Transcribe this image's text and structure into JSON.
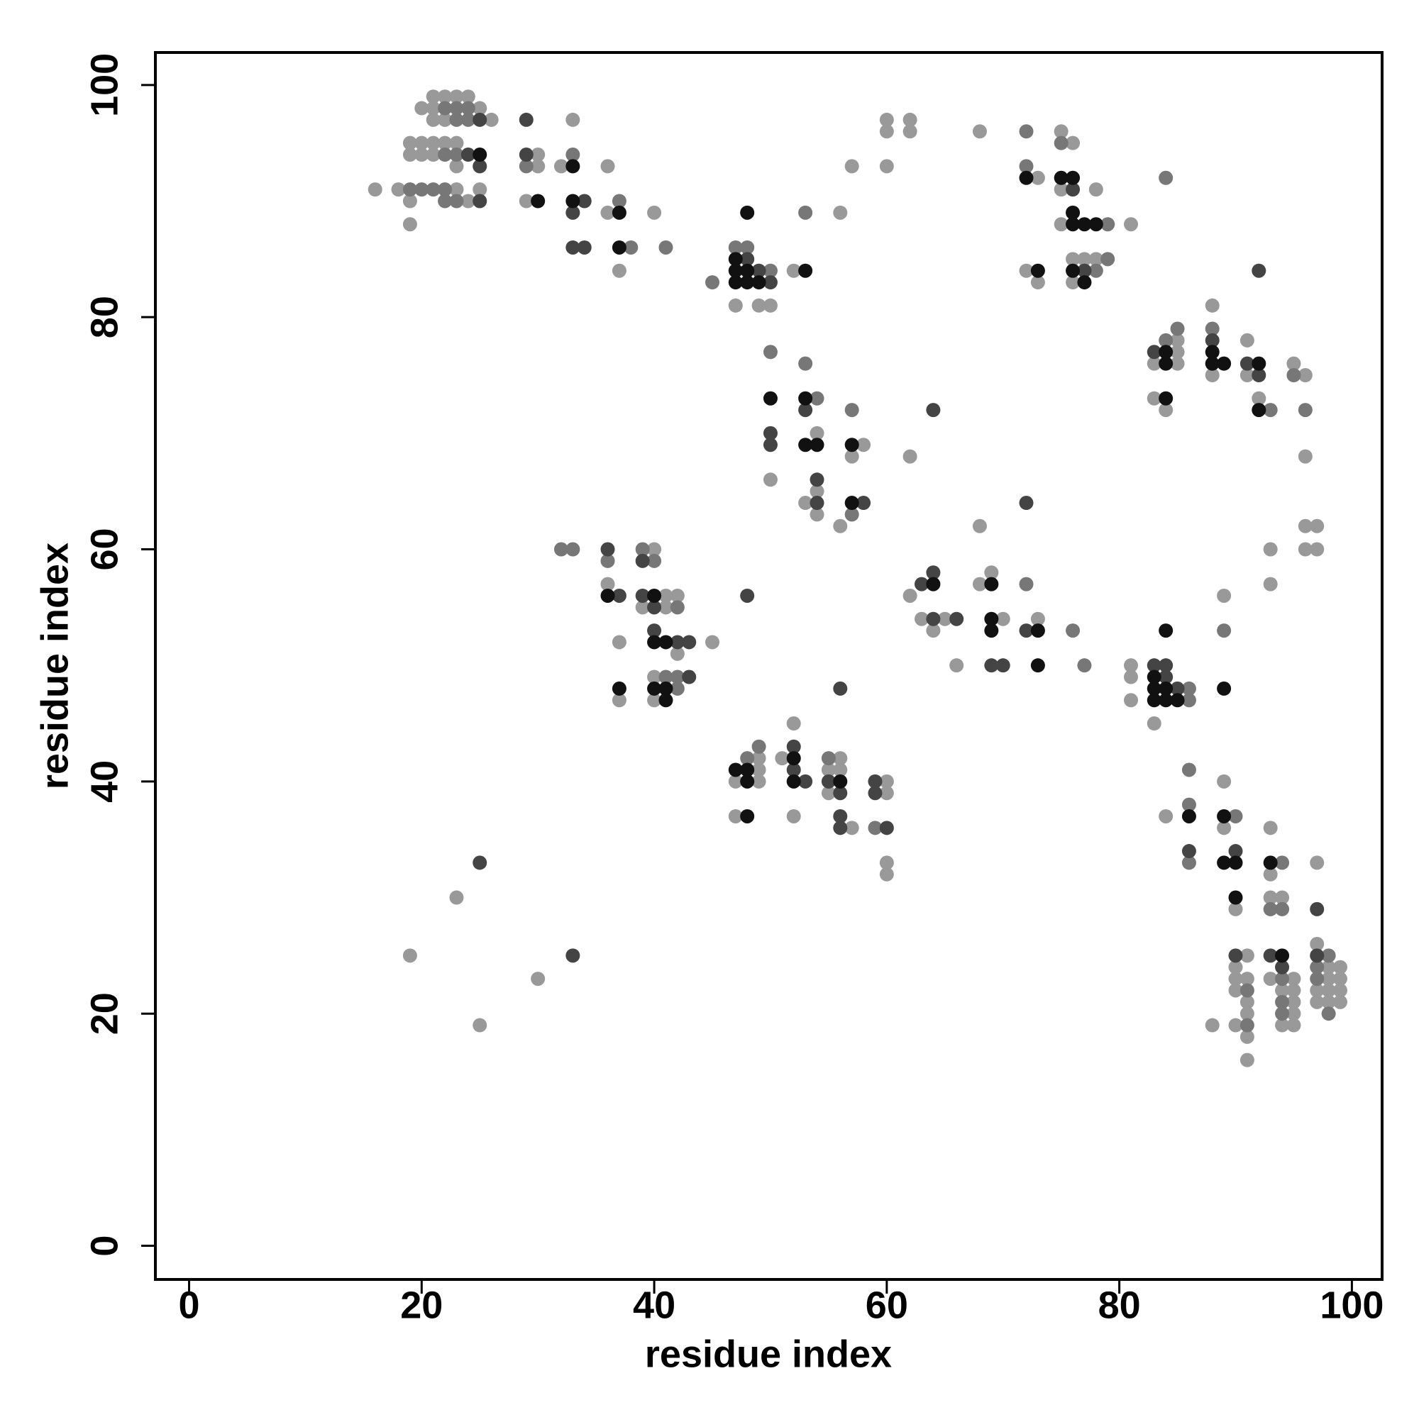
{
  "chart_data": {
    "type": "scatter",
    "x_label": "residue index",
    "y_label": "residue index",
    "xlim": [
      -2.9,
      102.6
    ],
    "ylim": [
      -2.9,
      102.8
    ],
    "xticks": [
      0,
      20,
      40,
      60,
      80,
      100
    ],
    "yticks": [
      0,
      20,
      40,
      60,
      80,
      100
    ],
    "series": [
      {
        "color": "#999999",
        "x": [
          16,
          18,
          19,
          19,
          19,
          19,
          20,
          20,
          20,
          21,
          21,
          21,
          21,
          21,
          22,
          22,
          22,
          23,
          23,
          23,
          23,
          24,
          24,
          25,
          25,
          26,
          29,
          30,
          30,
          32,
          33,
          36,
          36,
          37,
          40,
          47,
          49,
          50,
          52,
          56,
          57,
          60,
          60,
          60,
          62,
          62,
          68,
          73,
          72,
          73,
          75,
          75,
          75,
          76,
          76,
          76,
          77,
          78,
          78,
          81,
          83,
          83,
          84,
          85,
          85,
          85,
          88,
          88,
          91,
          91,
          92,
          95,
          96,
          96,
          96,
          97,
          96,
          97,
          93,
          93,
          89,
          50,
          54,
          54,
          54,
          53,
          56,
          57,
          58,
          62,
          68,
          36,
          37,
          37,
          39,
          40,
          40,
          40,
          41,
          41,
          42,
          42,
          45,
          62,
          63,
          64,
          65,
          66,
          68,
          69,
          70,
          73,
          81,
          81,
          81,
          83,
          47,
          47,
          49,
          49,
          49,
          51,
          52,
          52,
          55,
          55,
          56,
          56,
          57,
          60,
          60,
          60,
          60,
          23,
          19,
          30,
          25,
          84,
          89,
          89,
          90,
          90,
          90,
          90,
          90,
          91,
          91,
          91,
          91,
          91,
          91,
          88,
          93,
          93,
          93,
          93,
          94,
          94,
          94,
          95,
          95,
          95,
          95,
          95,
          97,
          97,
          97,
          97,
          98,
          98,
          98,
          98,
          99,
          99,
          99,
          99
        ],
        "values": [
          91,
          91,
          88,
          90,
          95,
          94,
          98,
          95,
          94,
          99,
          98,
          97,
          95,
          94,
          99,
          97,
          95,
          99,
          95,
          93,
          91,
          99,
          90,
          98,
          91,
          97,
          90,
          94,
          93,
          93,
          97,
          93,
          89,
          84,
          89,
          81,
          81,
          81,
          84,
          89,
          93,
          97,
          96,
          93,
          97,
          96,
          96,
          92,
          84,
          83,
          96,
          91,
          88,
          95,
          85,
          83,
          85,
          91,
          85,
          88,
          76,
          73,
          72,
          78,
          77,
          76,
          81,
          75,
          78,
          75,
          73,
          76,
          75,
          68,
          62,
          62,
          60,
          60,
          60,
          57,
          56,
          66,
          70,
          65,
          63,
          64,
          62,
          68,
          69,
          68,
          62,
          57,
          52,
          47,
          55,
          60,
          49,
          47,
          56,
          55,
          56,
          51,
          52,
          56,
          54,
          53,
          54,
          50,
          57,
          58,
          54,
          54,
          50,
          49,
          47,
          45,
          40,
          37,
          42,
          41,
          40,
          42,
          45,
          37,
          41,
          39,
          42,
          41,
          36,
          40,
          39,
          33,
          32,
          30,
          25,
          23,
          19,
          37,
          40,
          36,
          29,
          24,
          23,
          22,
          19,
          25,
          23,
          21,
          20,
          18,
          16,
          19,
          36,
          32,
          30,
          23,
          30,
          22,
          19,
          23,
          22,
          21,
          20,
          19,
          33,
          26,
          22,
          21,
          24,
          23,
          22,
          21,
          24,
          23,
          22,
          21
        ]
      },
      {
        "color": "#777777",
        "x": [
          19,
          20,
          21,
          22,
          22,
          22,
          22,
          23,
          23,
          23,
          23,
          24,
          24,
          29,
          33,
          37,
          38,
          41,
          45,
          47,
          48,
          50,
          53,
          72,
          72,
          75,
          78,
          79,
          79,
          84,
          84,
          85,
          88,
          93,
          95,
          96,
          89,
          50,
          53,
          54,
          57,
          57,
          32,
          33,
          36,
          39,
          40,
          41,
          42,
          42,
          42,
          72,
          76,
          77,
          86,
          86,
          48,
          49,
          55,
          59,
          86,
          86,
          86,
          90,
          91,
          91,
          93,
          94,
          94,
          94,
          94,
          94,
          97,
          97,
          98,
          98
        ],
        "values": [
          91,
          91,
          91,
          98,
          94,
          91,
          90,
          98,
          97,
          94,
          90,
          98,
          97,
          93,
          94,
          90,
          86,
          86,
          83,
          86,
          86,
          84,
          89,
          96,
          93,
          95,
          84,
          88,
          85,
          92,
          78,
          79,
          79,
          72,
          75,
          72,
          53,
          77,
          76,
          73,
          72,
          63,
          60,
          60,
          59,
          60,
          59,
          49,
          55,
          49,
          48,
          57,
          53,
          50,
          48,
          47,
          42,
          43,
          42,
          36,
          41,
          38,
          33,
          37,
          22,
          19,
          29,
          33,
          29,
          23,
          21,
          20,
          24,
          23,
          25,
          20
        ]
      },
      {
        "color": "#444444",
        "x": [
          24,
          25,
          25,
          25,
          29,
          29,
          33,
          33,
          34,
          34,
          48,
          49,
          50,
          76,
          77,
          83,
          88,
          91,
          92,
          92,
          50,
          50,
          53,
          54,
          54,
          58,
          64,
          72,
          36,
          37,
          39,
          39,
          40,
          40,
          42,
          43,
          43,
          48,
          56,
          63,
          64,
          64,
          66,
          69,
          70,
          72,
          83,
          84,
          84,
          85,
          52,
          52,
          53,
          55,
          56,
          56,
          56,
          59,
          59,
          60,
          25,
          33,
          86,
          90,
          90,
          93,
          94,
          97,
          97
        ],
        "values": [
          94,
          97,
          93,
          90,
          97,
          94,
          89,
          86,
          90,
          86,
          85,
          84,
          83,
          91,
          84,
          77,
          78,
          76,
          75,
          84,
          70,
          69,
          72,
          66,
          64,
          64,
          72,
          64,
          60,
          56,
          59,
          56,
          55,
          53,
          52,
          52,
          49,
          56,
          48,
          57,
          58,
          54,
          54,
          50,
          50,
          53,
          50,
          50,
          49,
          48,
          43,
          41,
          40,
          40,
          39,
          37,
          36,
          40,
          39,
          36,
          33,
          25,
          34,
          34,
          25,
          25,
          24,
          29,
          25
        ]
      },
      {
        "color": "#111111",
        "x": [
          25,
          30,
          33,
          33,
          37,
          37,
          47,
          47,
          47,
          48,
          48,
          48,
          49,
          53,
          72,
          73,
          75,
          76,
          76,
          76,
          76,
          77,
          77,
          78,
          84,
          84,
          84,
          88,
          88,
          89,
          92,
          92,
          89,
          50,
          53,
          53,
          54,
          57,
          57,
          36,
          37,
          40,
          40,
          40,
          41,
          41,
          41,
          64,
          69,
          69,
          69,
          73,
          73,
          83,
          83,
          83,
          84,
          84,
          84,
          85,
          47,
          48,
          48,
          48,
          52,
          52,
          56,
          86,
          89,
          89,
          90,
          90,
          93,
          94
        ],
        "values": [
          94,
          90,
          93,
          90,
          89,
          86,
          85,
          84,
          83,
          89,
          84,
          83,
          83,
          84,
          92,
          84,
          92,
          92,
          89,
          88,
          84,
          88,
          83,
          88,
          77,
          76,
          73,
          77,
          76,
          76,
          76,
          72,
          48,
          73,
          73,
          69,
          69,
          69,
          64,
          56,
          48,
          56,
          52,
          48,
          52,
          48,
          47,
          57,
          57,
          54,
          53,
          53,
          50,
          49,
          48,
          47,
          53,
          48,
          47,
          47,
          41,
          41,
          40,
          37,
          42,
          40,
          40,
          37,
          37,
          33,
          33,
          30,
          33,
          25
        ]
      }
    ]
  }
}
